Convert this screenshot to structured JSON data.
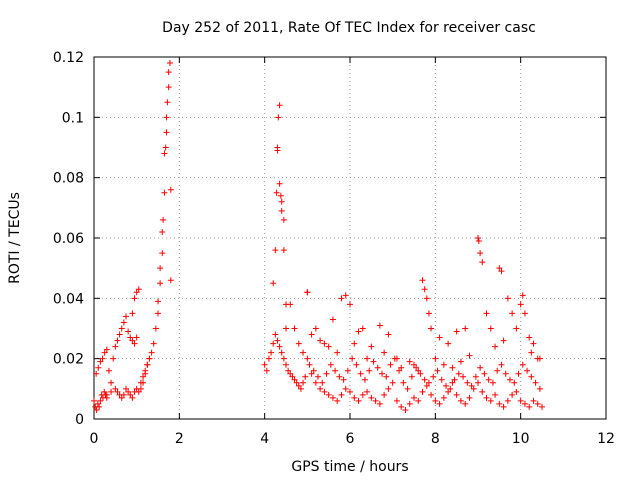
{
  "chart_data": {
    "type": "scatter",
    "title": "Day 252 of 2011, Rate Of TEC Index for receiver casc",
    "xlabel": "GPS time / hours",
    "ylabel": "ROTI / TECUs",
    "xlim": [
      0,
      12
    ],
    "ylim": [
      0,
      0.12
    ],
    "xticks": [
      0,
      2,
      4,
      6,
      8,
      10,
      12
    ],
    "yticks": [
      0,
      0.02,
      0.04,
      0.06,
      0.08,
      0.1,
      0.12
    ],
    "xtick_labels": [
      "0",
      "2",
      "4",
      "6",
      "8",
      "10",
      "12"
    ],
    "ytick_labels": [
      "0",
      "0.02",
      "0.04",
      "0.06",
      "0.08",
      "0.1",
      "0.12"
    ],
    "grid": true,
    "marker": "+",
    "color": "#ff0000",
    "series": [
      {
        "name": "ROTI",
        "x": [
          0.0,
          0.03,
          0.06,
          0.09,
          0.12,
          0.15,
          0.18,
          0.21,
          0.24,
          0.27,
          0.3,
          0.05,
          0.1,
          0.15,
          0.2,
          0.25,
          0.3,
          0.35,
          0.4,
          0.45,
          0.5,
          0.55,
          0.6,
          0.65,
          0.7,
          0.75,
          0.8,
          0.85,
          0.9,
          0.95,
          1.0,
          1.05,
          1.1,
          1.15,
          1.2,
          1.25,
          1.3,
          0.3,
          0.4,
          0.5,
          0.55,
          0.6,
          0.65,
          0.7,
          0.75,
          0.8,
          0.85,
          0.9,
          0.95,
          1.0,
          1.05,
          0.9,
          0.95,
          1.0,
          1.1,
          1.15,
          1.2,
          1.25,
          1.3,
          1.35,
          1.4,
          1.45,
          1.5,
          1.5,
          1.55,
          1.55,
          1.6,
          1.6,
          1.62,
          1.65,
          1.65,
          1.68,
          1.7,
          1.7,
          1.72,
          1.75,
          1.75,
          1.78,
          1.8,
          1.8,
          4.0,
          4.05,
          4.1,
          4.15,
          4.2,
          4.25,
          4.3,
          4.35,
          4.4,
          4.45,
          4.5,
          4.55,
          4.6,
          4.65,
          4.7,
          4.75,
          4.8,
          4.85,
          4.9,
          4.95,
          5.0,
          4.2,
          4.25,
          4.28,
          4.3,
          4.3,
          4.32,
          4.35,
          4.35,
          4.38,
          4.4,
          4.4,
          4.45,
          4.45,
          4.5,
          4.5,
          5.0,
          5.1,
          5.2,
          5.3,
          5.4,
          5.5,
          5.6,
          5.7,
          5.8,
          5.9,
          6.0,
          6.1,
          6.2,
          6.3,
          6.4,
          6.5,
          6.6,
          6.7,
          6.8,
          6.9,
          7.0,
          7.1,
          7.2,
          7.3,
          7.4,
          7.5,
          7.6,
          7.7,
          7.8,
          7.9,
          8.0,
          8.1,
          8.2,
          8.3,
          8.4,
          8.5,
          8.6,
          8.7,
          8.8,
          8.9,
          9.0,
          9.1,
          9.2,
          9.3,
          9.4,
          9.5,
          9.6,
          9.7,
          9.8,
          9.9,
          10.0,
          10.1,
          10.2,
          10.3,
          10.4,
          10.5,
          5.05,
          5.15,
          5.25,
          5.35,
          5.45,
          5.55,
          5.65,
          5.75,
          5.85,
          5.95,
          6.05,
          6.15,
          6.25,
          6.35,
          6.45,
          6.55,
          6.65,
          6.75,
          6.85,
          6.95,
          7.05,
          7.15,
          7.25,
          7.35,
          7.45,
          7.55,
          7.65,
          7.75,
          7.85,
          7.95,
          8.05,
          8.15,
          8.25,
          8.35,
          8.45,
          8.55,
          8.65,
          8.75,
          8.85,
          8.95,
          9.05,
          9.15,
          9.25,
          9.35,
          9.45,
          9.55,
          9.65,
          9.75,
          9.85,
          9.95,
          10.05,
          10.15,
          10.25,
          10.35,
          10.45,
          5.0,
          5.2,
          5.4,
          5.6,
          5.8,
          5.9,
          6.0,
          6.2,
          6.3,
          6.5,
          6.7,
          6.9,
          7.1,
          7.5,
          7.7,
          7.75,
          7.8,
          7.85,
          7.9,
          8.1,
          8.3,
          8.5,
          8.7,
          9.0,
          9.02,
          9.05,
          9.1,
          9.2,
          9.3,
          9.5,
          9.55,
          9.7,
          9.8,
          9.9,
          10.0,
          10.05,
          10.1,
          10.2,
          10.3,
          10.4,
          4.6,
          4.7,
          4.8,
          4.9,
          5.1,
          5.3,
          5.5,
          5.7,
          6.1,
          6.4,
          6.8,
          7.2,
          7.4,
          7.6,
          8.0,
          8.2,
          8.4,
          8.6,
          8.8,
          9.4,
          9.6,
          10.25,
          10.45
        ],
        "y": [
          0.006,
          0.004,
          0.003,
          0.005,
          0.004,
          0.006,
          0.008,
          0.007,
          0.009,
          0.008,
          0.007,
          0.015,
          0.017,
          0.019,
          0.02,
          0.022,
          0.023,
          0.016,
          0.012,
          0.02,
          0.024,
          0.026,
          0.028,
          0.03,
          0.032,
          0.034,
          0.029,
          0.027,
          0.035,
          0.04,
          0.042,
          0.043,
          0.012,
          0.014,
          0.016,
          0.018,
          0.02,
          0.008,
          0.009,
          0.01,
          0.009,
          0.008,
          0.007,
          0.008,
          0.01,
          0.009,
          0.008,
          0.007,
          0.009,
          0.01,
          0.009,
          0.026,
          0.025,
          0.027,
          0.01,
          0.012,
          0.015,
          0.018,
          0.02,
          0.022,
          0.025,
          0.03,
          0.035,
          0.039,
          0.045,
          0.05,
          0.055,
          0.062,
          0.066,
          0.075,
          0.088,
          0.09,
          0.095,
          0.1,
          0.105,
          0.11,
          0.115,
          0.118,
          0.076,
          0.046,
          0.018,
          0.016,
          0.02,
          0.022,
          0.025,
          0.028,
          0.026,
          0.024,
          0.022,
          0.02,
          0.018,
          0.016,
          0.015,
          0.014,
          0.013,
          0.012,
          0.011,
          0.01,
          0.012,
          0.014,
          0.042,
          0.045,
          0.056,
          0.075,
          0.09,
          0.089,
          0.1,
          0.104,
          0.078,
          0.074,
          0.072,
          0.069,
          0.066,
          0.056,
          0.03,
          0.038,
          0.02,
          0.015,
          0.012,
          0.01,
          0.009,
          0.008,
          0.007,
          0.006,
          0.008,
          0.01,
          0.009,
          0.007,
          0.006,
          0.008,
          0.009,
          0.007,
          0.006,
          0.005,
          0.008,
          0.01,
          0.012,
          0.006,
          0.004,
          0.003,
          0.005,
          0.007,
          0.006,
          0.009,
          0.011,
          0.008,
          0.006,
          0.005,
          0.007,
          0.009,
          0.012,
          0.008,
          0.006,
          0.005,
          0.007,
          0.01,
          0.012,
          0.009,
          0.007,
          0.006,
          0.008,
          0.005,
          0.004,
          0.006,
          0.008,
          0.009,
          0.006,
          0.005,
          0.004,
          0.006,
          0.005,
          0.004,
          0.018,
          0.016,
          0.014,
          0.012,
          0.015,
          0.018,
          0.016,
          0.014,
          0.013,
          0.016,
          0.02,
          0.018,
          0.015,
          0.013,
          0.016,
          0.019,
          0.017,
          0.015,
          0.014,
          0.018,
          0.02,
          0.016,
          0.012,
          0.01,
          0.014,
          0.017,
          0.015,
          0.013,
          0.012,
          0.014,
          0.016,
          0.013,
          0.011,
          0.01,
          0.013,
          0.015,
          0.014,
          0.012,
          0.011,
          0.014,
          0.017,
          0.015,
          0.013,
          0.012,
          0.016,
          0.018,
          0.015,
          0.013,
          0.012,
          0.015,
          0.018,
          0.016,
          0.014,
          0.012,
          0.01,
          0.042,
          0.03,
          0.025,
          0.033,
          0.04,
          0.041,
          0.038,
          0.029,
          0.03,
          0.024,
          0.031,
          0.028,
          0.02,
          0.018,
          0.046,
          0.043,
          0.04,
          0.035,
          0.03,
          0.027,
          0.025,
          0.029,
          0.03,
          0.06,
          0.059,
          0.055,
          0.052,
          0.035,
          0.03,
          0.05,
          0.049,
          0.04,
          0.035,
          0.03,
          0.038,
          0.041,
          0.035,
          0.027,
          0.025,
          0.02,
          0.038,
          0.03,
          0.025,
          0.022,
          0.028,
          0.026,
          0.024,
          0.022,
          0.025,
          0.02,
          0.022,
          0.017,
          0.019,
          0.016,
          0.02,
          0.018,
          0.017,
          0.019,
          0.021,
          0.024,
          0.026,
          0.022,
          0.02
        ]
      }
    ]
  }
}
